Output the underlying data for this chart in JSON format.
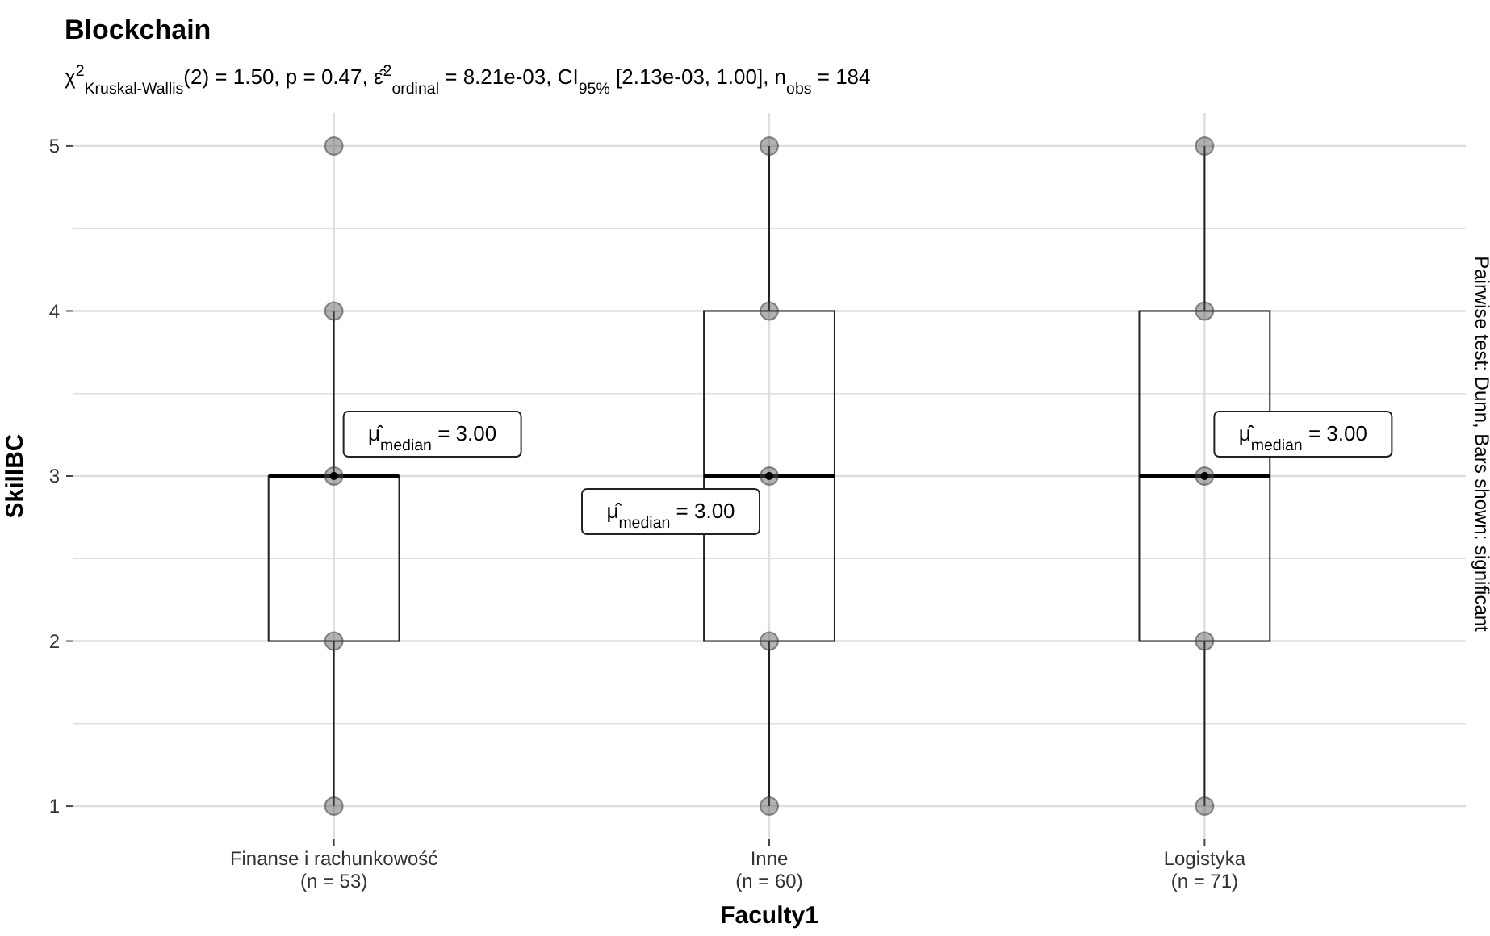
{
  "chart_data": {
    "type": "box",
    "title": "Blockchain",
    "subtitle": "χ$^{2}$$_{Kruskal-Wallis}$(2) = 1.50, p = 0.47, ε̂$^{2}$$_{ordinal}$ = 8.21e-03, CI$_{95%}$ [2.13e-03, 1.00], n$_{obs}$ = 184",
    "xlabel": "Faculty1",
    "ylabel": "SkillBC",
    "categories": [
      "Finanse i rachunkowość\n(n = 53)",
      "Inne\n(n = 60)",
      "Logistyka\n(n = 71)"
    ],
    "boxes": [
      {
        "low": 1,
        "q1": 2,
        "median": 3,
        "q3": 3,
        "high": 4
      },
      {
        "low": 1,
        "q1": 2,
        "median": 3,
        "q3": 4,
        "high": 5
      },
      {
        "low": 1,
        "q1": 2,
        "median": 3,
        "q3": 4,
        "high": 5
      }
    ],
    "series": [
      {
        "type": "scatter",
        "color": "#555555",
        "x": [
          "Finanse i rachunkowość\n(n = 53)",
          "Finanse i rachunkowość\n(n = 53)",
          "Finanse i rachunkowość\n(n = 53)",
          "Finanse i rachunkowość\n(n = 53)",
          "Finanse i rachunkowość\n(n = 53)",
          "Inne\n(n = 60)",
          "Inne\n(n = 60)",
          "Inne\n(n = 60)",
          "Inne\n(n = 60)",
          "Inne\n(n = 60)",
          "Logistyka\n(n = 71)",
          "Logistyka\n(n = 71)",
          "Logistyka\n(n = 71)",
          "Logistyka\n(n = 71)",
          "Logistyka\n(n = 71)"
        ],
        "values": [
          1,
          2,
          3,
          4,
          5,
          1,
          2,
          3,
          4,
          5,
          1,
          2,
          3,
          4,
          5
        ]
      }
    ],
    "ylim": [
      0.8,
      5.2
    ],
    "yticks": [
      1,
      {
        "value": 1.5,
        "label": null
      },
      2,
      {
        "value": 2.5,
        "label": null
      },
      3,
      {
        "value": 3.5,
        "label": null
      },
      4,
      {
        "value": 4.5,
        "label": null
      },
      5
    ],
    "grid": true,
    "marker": "circle",
    "annotations": [
      {
        "text": "μ̂$_{median}$ = 3.00",
        "x": "Finanse i rachunkowość\n(n = 53)",
        "y": 3
      },
      {
        "text": "μ̂$_{median}$ = 3.00",
        "x": "Inne\n(n = 60)",
        "y": 3
      },
      {
        "text": "μ̂$_{median}$ = 3.00",
        "x": "Logistyka\n(n = 71)",
        "y": 3
      },
      "Pairwise test: Dunn, Bars shown: significant"
    ]
  }
}
